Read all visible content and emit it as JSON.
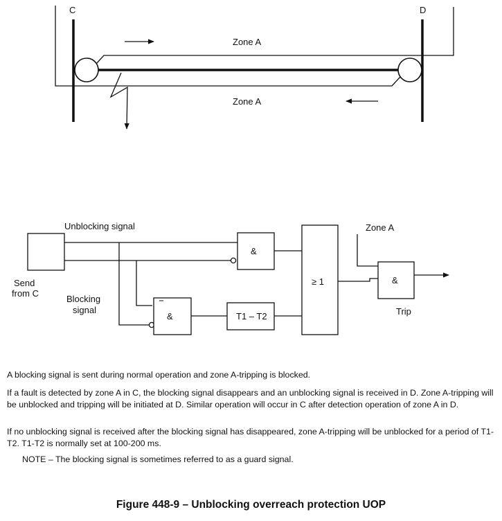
{
  "top_diagram": {
    "busbar_left": "C",
    "busbar_right": "D",
    "zone_upper": "Zone A",
    "zone_lower": "Zone A"
  },
  "logic_diagram": {
    "send_label_line1": "Send",
    "send_label_line2": "from C",
    "unblocking_signal": "Unblocking signal",
    "blocking_signal_line1": "Blocking",
    "blocking_signal_line2": "signal",
    "and_gate_1": "&",
    "and_gate_2": "&",
    "timer": "T1 – T2",
    "or_gate": "≥ 1",
    "zone_a_input": "Zone A",
    "and_gate_3": "&",
    "trip": "Trip"
  },
  "paragraphs": [
    "A blocking signal is sent during normal operation and zone A-tripping is blocked.",
    "If a fault is detected by zone A in C, the blocking signal disappears and an unblocking signal is received in D. Zone A-tripping will be unblocked and tripping will be initiated at D. Similar operation will occur in C after detection operation of zone A in D.",
    "If no unblocking signal is received after the blocking signal has disappeared, zone A-tripping will be unblocked for a period of T1-T2. T1-T2 is normally set at 100-200 ms."
  ],
  "note": "NOTE  –  The blocking signal is sometimes referred to as a guard signal.",
  "caption": "Figure 448-9 – Unblocking overreach protection UOP"
}
